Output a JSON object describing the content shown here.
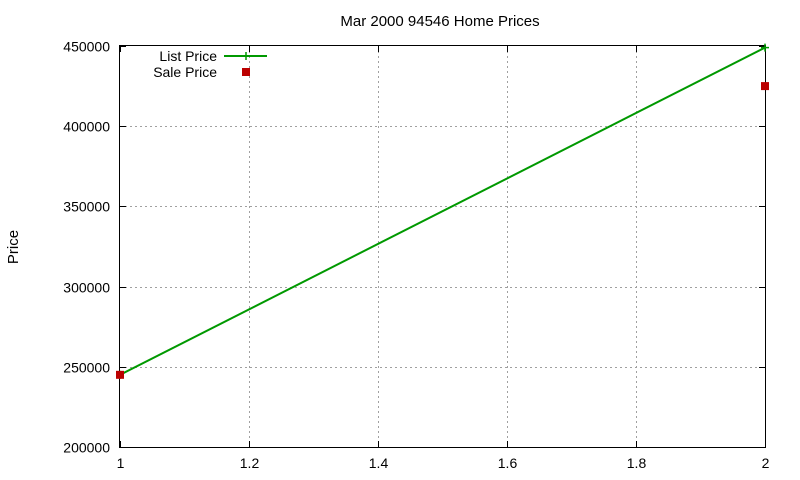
{
  "chart_data": {
    "type": "line",
    "title": "Mar 2000 94546 Home Prices",
    "xlabel": "",
    "ylabel": "Price",
    "xlim": [
      1,
      2
    ],
    "ylim": [
      200000,
      450000
    ],
    "x_ticks": [
      "1",
      "1.2",
      "1.4",
      "1.6",
      "1.8",
      "2"
    ],
    "y_ticks": [
      "200000",
      "250000",
      "300000",
      "350000",
      "400000",
      "450000"
    ],
    "grid": true,
    "legend_position": "top-left",
    "series": [
      {
        "name": "List Price",
        "style": "linespoints",
        "marker": "plus",
        "color": "#009900",
        "x": [
          1,
          2
        ],
        "y": [
          245000,
          449000
        ]
      },
      {
        "name": "Sale Price",
        "style": "points",
        "marker": "square",
        "color": "#bb0000",
        "x": [
          1,
          2
        ],
        "y": [
          245000,
          425000
        ]
      }
    ]
  }
}
